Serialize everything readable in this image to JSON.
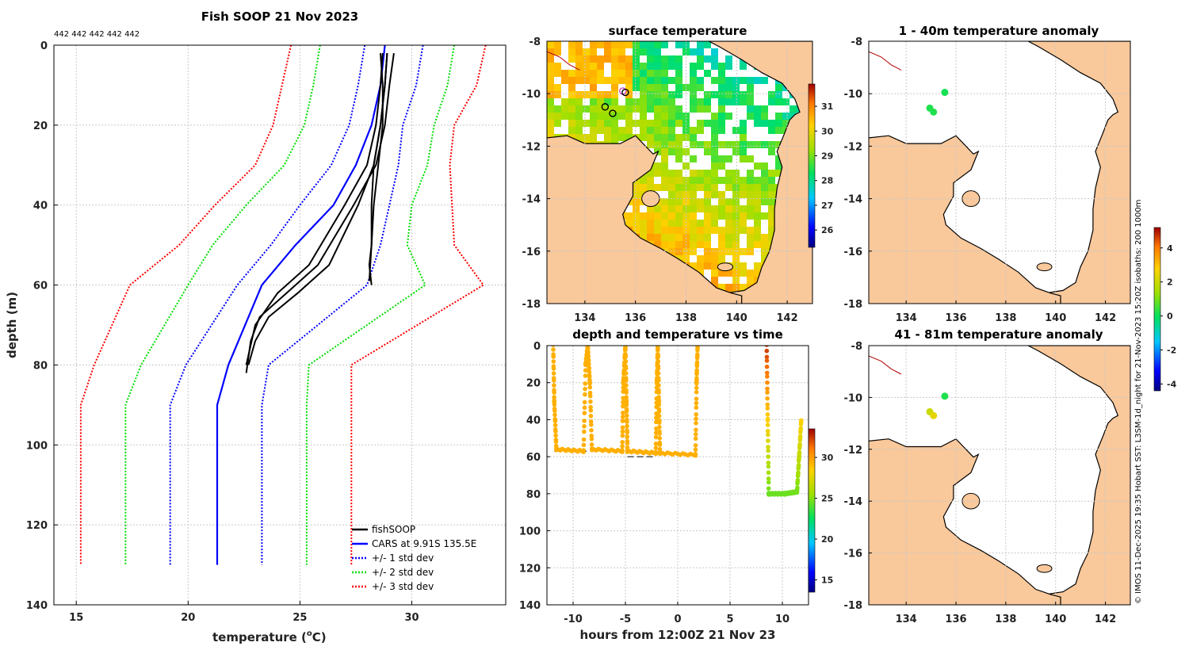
{
  "chart_data": [
    {
      "type": "line",
      "title": "Fish SOOP 21 Nov 2023",
      "counts_label": "442 442 442 442 442",
      "xlabel": "temperature (°C)",
      "xlabel_main": "temperature (",
      "xlabel_sup": "o",
      "xlabel_end": "C)",
      "ylabel": "depth (m)",
      "xlim": [
        14,
        34.2
      ],
      "ylim": [
        0,
        140
      ],
      "xticks": [
        "15",
        "20",
        "25",
        "30"
      ],
      "yticks": [
        "0",
        "20",
        "40",
        "60",
        "80",
        "100",
        "120",
        "140"
      ],
      "legend": [
        "fishSOOP",
        "CARS at 9.91S 135.5E",
        "+/- 1 std dev",
        "+/- 2 std dev",
        "+/- 3 std dev"
      ],
      "series": [
        {
          "name": "CARS mean",
          "color": "#0000ff",
          "style": "solid",
          "temps": [
            28.8,
            28.6,
            28.2,
            27.5,
            26.5,
            24.8,
            23.3,
            21.8,
            21.3,
            21.3
          ],
          "depths": [
            0,
            10,
            20,
            30,
            40,
            50,
            60,
            80,
            90,
            130
          ]
        },
        {
          "name": "-1 std",
          "color": "#0000ff",
          "style": "dot",
          "temps": [
            27.9,
            27.6,
            27.2,
            26.4,
            25.0,
            23.7,
            22.2,
            19.9,
            19.2,
            19.2
          ],
          "depths": [
            0,
            10,
            20,
            30,
            40,
            50,
            60,
            80,
            90,
            130
          ]
        },
        {
          "name": "+1 std",
          "color": "#0000ff",
          "style": "dot",
          "temps": [
            30.5,
            30.2,
            29.6,
            29.4,
            29.0,
            28.6,
            28.0,
            23.6,
            23.3,
            23.3
          ],
          "depths": [
            0,
            10,
            20,
            30,
            40,
            50,
            60,
            80,
            90,
            130
          ]
        },
        {
          "name": "-2 std",
          "color": "#00dd00",
          "style": "dot",
          "temps": [
            25.9,
            25.6,
            25.2,
            24.3,
            22.6,
            21.1,
            20.0,
            17.9,
            17.2,
            17.2
          ],
          "depths": [
            0,
            10,
            20,
            30,
            40,
            50,
            60,
            80,
            90,
            130
          ]
        },
        {
          "name": "+2 std",
          "color": "#00dd00",
          "style": "dot",
          "temps": [
            31.9,
            31.6,
            31.0,
            30.7,
            30.0,
            29.8,
            30.6,
            25.4,
            25.3,
            25.3
          ],
          "depths": [
            0,
            10,
            20,
            30,
            40,
            50,
            60,
            80,
            90,
            130
          ]
        },
        {
          "name": "-3 std",
          "color": "#ff0000",
          "style": "dot",
          "temps": [
            24.6,
            24.2,
            23.8,
            23.0,
            21.2,
            19.6,
            17.4,
            15.8,
            15.2,
            15.2
          ],
          "depths": [
            0,
            10,
            20,
            30,
            40,
            50,
            60,
            80,
            90,
            130
          ]
        },
        {
          "name": "+3 std",
          "color": "#ff0000",
          "style": "dot",
          "temps": [
            33.3,
            32.9,
            31.9,
            31.7,
            31.8,
            31.9,
            33.2,
            27.3,
            27.3,
            27.3
          ],
          "depths": [
            0,
            10,
            20,
            30,
            40,
            50,
            60,
            80,
            90,
            130
          ]
        }
      ],
      "fish_profiles": [
        {
          "name": "fishSOOP 1",
          "temps": [
            28.9,
            28.8,
            28.6,
            28.3,
            28.2,
            28.2,
            28.1,
            28.2
          ],
          "depths": [
            2,
            10,
            20,
            30,
            40,
            50,
            55,
            60
          ]
        },
        {
          "name": "fishSOOP 2",
          "temps": [
            28.6,
            28.7,
            28.7,
            28.5,
            28.3,
            28.2,
            28.1
          ],
          "depths": [
            2,
            10,
            20,
            30,
            40,
            50,
            59
          ]
        },
        {
          "name": "fishSOOP 3",
          "temps": [
            29.2,
            29.0,
            28.8,
            28.4,
            27.4,
            25.8,
            24.4,
            23.2,
            22.8,
            22.6
          ],
          "depths": [
            2,
            10,
            20,
            30,
            40,
            55,
            62,
            68,
            74,
            82
          ]
        },
        {
          "name": "fishSOOP 4",
          "temps": [
            28.9,
            28.8,
            28.6,
            28.3,
            27.6,
            26.3,
            24.9,
            23.6,
            23.0,
            22.7
          ],
          "depths": [
            2,
            10,
            20,
            30,
            40,
            55,
            62,
            68,
            74,
            80
          ]
        },
        {
          "name": "fishSOOP 5",
          "temps": [
            28.7,
            28.6,
            28.4,
            28.0,
            27.0,
            25.4,
            24.0,
            23.0,
            22.6
          ],
          "depths": [
            2,
            10,
            20,
            30,
            40,
            55,
            62,
            70,
            80
          ]
        }
      ]
    },
    {
      "type": "heatmap",
      "title": "surface temperature",
      "xlim": [
        132.5,
        143.0
      ],
      "ylim": [
        -18,
        -8
      ],
      "xticks": [
        "134",
        "136",
        "138",
        "140",
        "142"
      ],
      "yticks": [
        "-8",
        "-10",
        "-12",
        "-14",
        "-16",
        "-18"
      ],
      "colorbar": {
        "min": 25.3,
        "max": 31.9,
        "ticks": [
          "26",
          "27",
          "28",
          "29",
          "30",
          "31"
        ]
      },
      "markers": [
        {
          "lon": 135.5,
          "lat": -9.9,
          "color": "#cc44cc"
        },
        {
          "lon": 134.8,
          "lat": -10.5,
          "color": "#000000"
        },
        {
          "lon": 135.1,
          "lat": -10.75,
          "color": "#000000"
        },
        {
          "lon": 135.6,
          "lat": -9.95,
          "color": "#000000"
        }
      ]
    },
    {
      "type": "scatter",
      "title": "depth and temperature vs time",
      "xlabel": "hours from 12:00Z 21 Nov 23",
      "xlim": [
        -12.5,
        12.5
      ],
      "ylim": [
        0,
        140
      ],
      "xticks": [
        "-10",
        "-5",
        "0",
        "5",
        "10"
      ],
      "yticks": [
        "0",
        "20",
        "40",
        "60",
        "80",
        "100",
        "120",
        "140"
      ],
      "colorbar": {
        "min": 13.5,
        "max": 33.5,
        "ticks": [
          "15",
          "20",
          "25",
          "30"
        ]
      },
      "segments": [
        {
          "t": [
            -11.9,
            -11.8,
            -11.6,
            -9.0,
            -8.8,
            -8.6,
            -8.4,
            -8.2,
            -5.3,
            -5.2,
            -5.0,
            -4.9,
            -4.8,
            -2.1,
            -2.0,
            -1.9,
            -1.8,
            -1.7,
            1.7,
            1.8,
            1.9
          ],
          "d": [
            0,
            30,
            56,
            57,
            10,
            0,
            20,
            56,
            57,
            20,
            0,
            30,
            57,
            58,
            20,
            0,
            30,
            58,
            59,
            20,
            0
          ],
          "temp": 29.5
        },
        {
          "t": [
            8.5,
            8.6,
            8.7,
            10.2,
            11.4,
            11.6,
            11.8
          ],
          "d": [
            0,
            40,
            80,
            80,
            79,
            60,
            40
          ],
          "temp": 25.5
        }
      ],
      "reference_lines": [
        {
          "t": [
            -11.8,
            -8.7
          ],
          "d": 57
        },
        {
          "t": [
            -8.2,
            -5.3
          ],
          "d": 57
        },
        {
          "t": [
            -4.8,
            -2.1
          ],
          "d": 60
        },
        {
          "t": [
            -1.7,
            1.7
          ],
          "d": 58
        },
        {
          "t": [
            8.7,
            11.4
          ],
          "d": 80
        }
      ]
    },
    {
      "type": "scatter",
      "title": "1 - 40m temperature anomaly",
      "xlim": [
        132.5,
        143.0
      ],
      "ylim": [
        -18,
        -8
      ],
      "xticks": [
        "134",
        "136",
        "138",
        "140",
        "142"
      ],
      "yticks": [
        "-8",
        "-10",
        "-12",
        "-14",
        "-16",
        "-18"
      ],
      "points": [
        {
          "lon": 135.55,
          "lat": -9.95,
          "anomaly": 0.1
        },
        {
          "lon": 134.95,
          "lat": -10.55,
          "anomaly": 0.2
        },
        {
          "lon": 135.1,
          "lat": -10.7,
          "anomaly": 0.2
        }
      ]
    },
    {
      "type": "scatter",
      "title": "41 - 81m temperature anomaly",
      "xlim": [
        132.5,
        143.0
      ],
      "ylim": [
        -18,
        -8
      ],
      "xticks": [
        "134",
        "136",
        "138",
        "140",
        "142"
      ],
      "yticks": [
        "-8",
        "-10",
        "-12",
        "-14",
        "-16",
        "-18"
      ],
      "points": [
        {
          "lon": 135.55,
          "lat": -9.95,
          "anomaly": 0.2
        },
        {
          "lon": 134.95,
          "lat": -10.55,
          "anomaly": 2.0
        },
        {
          "lon": 135.1,
          "lat": -10.7,
          "anomaly": 2.4
        }
      ],
      "colorbar": {
        "min": -4.4,
        "max": 5.2,
        "ticks": [
          "4",
          "2",
          "0",
          "-2",
          "-4"
        ]
      }
    }
  ],
  "colors": {
    "land": "#f9c89b",
    "cars": "#0000ff",
    "std1": "#0000ff",
    "std2": "#00dd00",
    "std3": "#ff0000"
  },
  "side_note": "© IMOS 11-Dec-2025 19:35 Hobart SST: L3SM-1d_night for 21-Nov-2023 15:20Z isobaths: 200  1000m"
}
